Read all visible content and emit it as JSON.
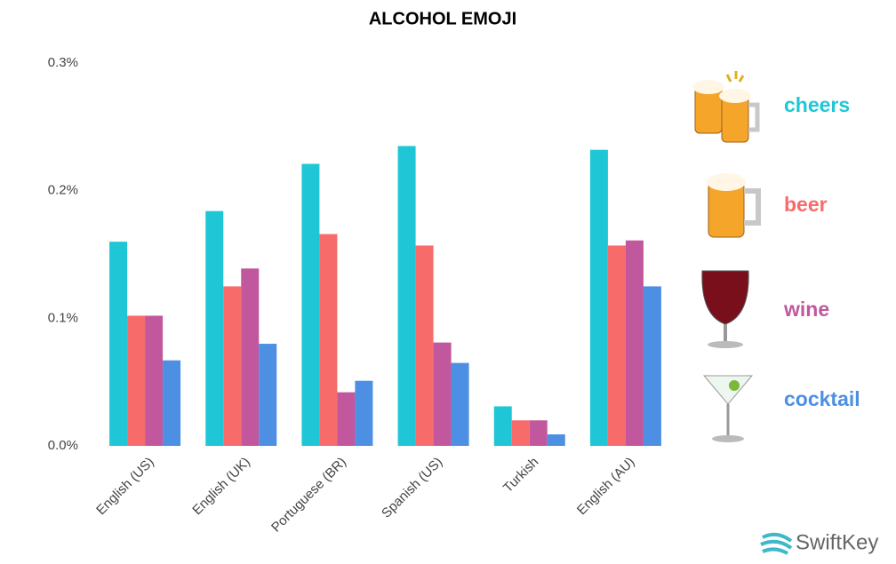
{
  "chart_data": {
    "type": "bar",
    "title": "ALCOHOL EMOJI",
    "categories": [
      "English (US)",
      "English (UK)",
      "Portuguese (BR)",
      "Spanish (US)",
      "Turkish",
      "English (AU)"
    ],
    "series": [
      {
        "name": "cheers",
        "color": "#1fc7d6",
        "values": [
          0.16,
          0.184,
          0.221,
          0.235,
          0.031,
          0.232
        ]
      },
      {
        "name": "beer",
        "color": "#f76b6b",
        "values": [
          0.102,
          0.125,
          0.166,
          0.157,
          0.02,
          0.157
        ]
      },
      {
        "name": "wine",
        "color": "#c1579c",
        "values": [
          0.102,
          0.139,
          0.042,
          0.081,
          0.02,
          0.161
        ]
      },
      {
        "name": "cocktail",
        "color": "#4c8fe3",
        "values": [
          0.067,
          0.08,
          0.051,
          0.065,
          0.009,
          0.125
        ]
      }
    ],
    "ylim": [
      0,
      0.3
    ],
    "yticks": [
      {
        "value": 0,
        "label": "0.0%"
      },
      {
        "value": 0.1,
        "label": "0.1%"
      },
      {
        "value": 0.2,
        "label": "0.2%"
      },
      {
        "value": 0.3,
        "label": "0.3%"
      }
    ],
    "grid": false,
    "legend": "right"
  },
  "brand": "SwiftKey"
}
